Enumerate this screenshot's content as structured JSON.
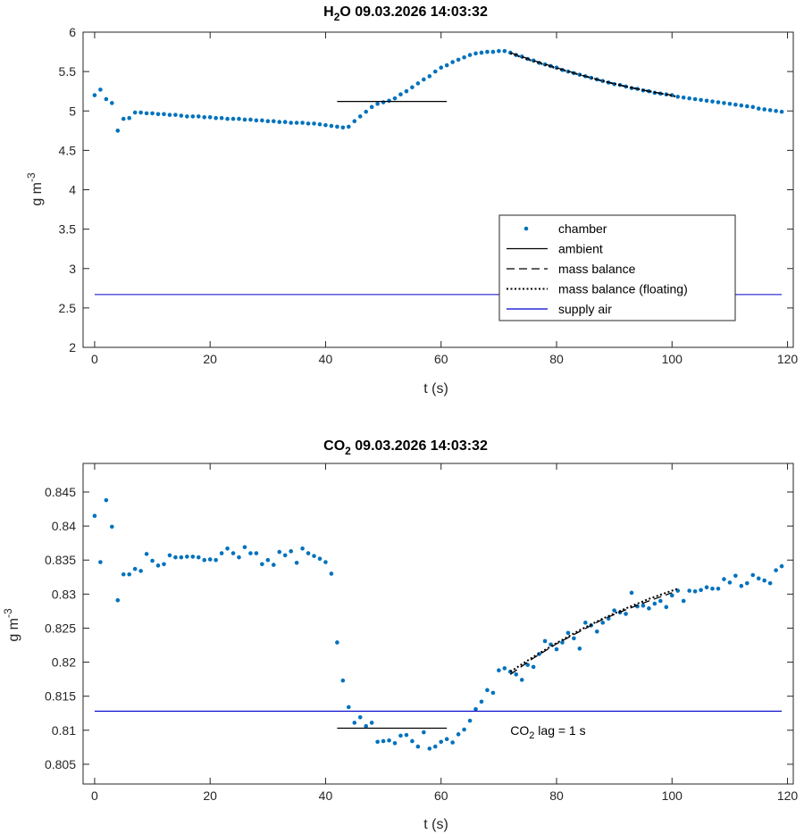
{
  "chart_data": [
    {
      "type": "scatter",
      "title_main": "H",
      "title_sub": "2",
      "title_rest": "O  09.03.2026 14:03:32",
      "xlabel": "t (s)",
      "ylabel_main": "g m",
      "ylabel_sup": "-3",
      "xlim": [
        -2,
        121
      ],
      "ylim": [
        2,
        6
      ],
      "xticks": [
        0,
        20,
        40,
        60,
        80,
        100,
        120
      ],
      "yticks": [
        2,
        2.5,
        3,
        3.5,
        4,
        4.5,
        5,
        5.5,
        6
      ],
      "ytick_labels": [
        "2",
        "2.5",
        "3",
        "3.5",
        "4",
        "4.5",
        "5",
        "5.5",
        "6"
      ],
      "colors": {
        "chamber": "#0072BD",
        "ambient": "#000000",
        "supply": "#0000CC",
        "mass": "#000000"
      },
      "series": [
        {
          "name": "chamber",
          "style": "dots",
          "x": [
            0,
            1,
            2,
            3,
            4,
            5,
            6,
            7,
            8,
            9,
            10,
            11,
            12,
            13,
            14,
            15,
            16,
            17,
            18,
            19,
            20,
            21,
            22,
            23,
            24,
            25,
            26,
            27,
            28,
            29,
            30,
            31,
            32,
            33,
            34,
            35,
            36,
            37,
            38,
            39,
            40,
            41,
            42,
            43,
            44,
            45,
            46,
            47,
            48,
            49,
            50,
            51,
            52,
            53,
            54,
            55,
            56,
            57,
            58,
            59,
            60,
            61,
            62,
            63,
            64,
            65,
            66,
            67,
            68,
            69,
            70,
            71,
            72,
            73,
            74,
            75,
            76,
            77,
            78,
            79,
            80,
            81,
            82,
            83,
            84,
            85,
            86,
            87,
            88,
            89,
            90,
            91,
            92,
            93,
            94,
            95,
            96,
            97,
            98,
            99,
            100,
            101,
            102,
            103,
            104,
            105,
            106,
            107,
            108,
            109,
            110,
            111,
            112,
            113,
            114,
            115,
            116,
            117,
            118,
            119
          ],
          "y": [
            5.2,
            5.27,
            5.15,
            5.1,
            4.75,
            4.9,
            4.91,
            4.98,
            4.98,
            4.97,
            4.97,
            4.96,
            4.96,
            4.95,
            4.95,
            4.94,
            4.93,
            4.93,
            4.93,
            4.92,
            4.92,
            4.91,
            4.91,
            4.9,
            4.9,
            4.9,
            4.89,
            4.89,
            4.88,
            4.88,
            4.87,
            4.87,
            4.86,
            4.86,
            4.85,
            4.85,
            4.85,
            4.84,
            4.84,
            4.83,
            4.82,
            4.81,
            4.8,
            4.79,
            4.8,
            4.87,
            4.93,
            4.99,
            5.05,
            5.09,
            5.11,
            5.13,
            5.16,
            5.21,
            5.25,
            5.3,
            5.35,
            5.4,
            5.44,
            5.5,
            5.55,
            5.58,
            5.62,
            5.65,
            5.68,
            5.71,
            5.73,
            5.74,
            5.75,
            5.75,
            5.76,
            5.76,
            5.74,
            5.71,
            5.69,
            5.66,
            5.64,
            5.61,
            5.59,
            5.57,
            5.55,
            5.52,
            5.5,
            5.48,
            5.46,
            5.44,
            5.42,
            5.4,
            5.38,
            5.36,
            5.34,
            5.33,
            5.31,
            5.29,
            5.28,
            5.26,
            5.25,
            5.23,
            5.22,
            5.21,
            5.2,
            5.18,
            5.17,
            5.16,
            5.15,
            5.14,
            5.13,
            5.12,
            5.11,
            5.1,
            5.09,
            5.08,
            5.07,
            5.06,
            5.05,
            5.03,
            5.02,
            5.01,
            5.0,
            4.99
          ]
        },
        {
          "name": "ambient",
          "style": "solid",
          "x": [
            42,
            61
          ],
          "y": [
            5.12,
            5.12
          ]
        },
        {
          "name": "mass balance",
          "style": "dashed",
          "x": [
            72,
            76,
            80,
            84,
            88,
            92,
            96,
            100
          ],
          "y": [
            5.74,
            5.64,
            5.55,
            5.46,
            5.38,
            5.31,
            5.25,
            5.2
          ]
        },
        {
          "name": "mass balance (floating)",
          "style": "dotted",
          "x": [
            72,
            76,
            80,
            84,
            88,
            92,
            96,
            101
          ],
          "y": [
            5.73,
            5.63,
            5.54,
            5.46,
            5.38,
            5.31,
            5.25,
            5.18
          ]
        },
        {
          "name": "supply air",
          "style": "solid-blue",
          "x": [
            0,
            119
          ],
          "y": [
            2.67,
            2.67
          ]
        }
      ],
      "legend": {
        "entries": [
          "chamber",
          "ambient",
          "mass balance",
          "mass balance (floating)",
          "supply air"
        ],
        "placement": "center-right"
      }
    },
    {
      "type": "scatter",
      "title_main": "CO",
      "title_sub": "2",
      "title_rest": "  09.03.2026 14:03:32",
      "xlabel": "t (s)",
      "ylabel_main": "g m",
      "ylabel_sup": "-3",
      "xlim": [
        -2,
        121
      ],
      "ylim": [
        0.8021,
        0.8492
      ],
      "xticks": [
        0,
        20,
        40,
        60,
        80,
        100,
        120
      ],
      "yticks": [
        0.805,
        0.81,
        0.815,
        0.82,
        0.825,
        0.83,
        0.835,
        0.84,
        0.845
      ],
      "ytick_labels": [
        "0.805",
        "0.81",
        "0.815",
        "0.82",
        "0.825",
        "0.83",
        "0.835",
        "0.84",
        "0.845"
      ],
      "series": [
        {
          "name": "chamber",
          "style": "dots",
          "x": [
            0,
            1,
            2,
            3,
            4,
            5,
            6,
            7,
            8,
            9,
            10,
            11,
            12,
            13,
            14,
            15,
            16,
            17,
            18,
            19,
            20,
            21,
            22,
            23,
            24,
            25,
            26,
            27,
            28,
            29,
            30,
            31,
            32,
            33,
            34,
            35,
            36,
            37,
            38,
            39,
            40,
            41,
            42,
            43,
            44,
            45,
            46,
            47,
            48,
            49,
            50,
            51,
            52,
            53,
            54,
            55,
            56,
            57,
            58,
            59,
            60,
            61,
            62,
            63,
            64,
            65,
            66,
            67,
            68,
            69,
            70,
            71,
            72,
            73,
            74,
            75,
            76,
            77,
            78,
            79,
            80,
            81,
            82,
            83,
            84,
            85,
            86,
            87,
            88,
            89,
            90,
            91,
            92,
            93,
            94,
            95,
            96,
            97,
            98,
            99,
            100,
            101,
            102,
            103,
            104,
            105,
            106,
            107,
            108,
            109,
            110,
            111,
            112,
            113,
            114,
            115,
            116,
            117,
            118,
            119
          ],
          "y": [
            0.8415,
            0.8347,
            0.8438,
            0.8399,
            0.8291,
            0.8329,
            0.8329,
            0.8337,
            0.8334,
            0.8359,
            0.8349,
            0.8342,
            0.8344,
            0.8357,
            0.8354,
            0.8354,
            0.8355,
            0.8355,
            0.8354,
            0.835,
            0.8351,
            0.835,
            0.836,
            0.8367,
            0.836,
            0.8354,
            0.8369,
            0.836,
            0.836,
            0.8344,
            0.835,
            0.8343,
            0.8362,
            0.8357,
            0.8363,
            0.8346,
            0.8367,
            0.836,
            0.8356,
            0.8352,
            0.8347,
            0.833,
            0.8229,
            0.8173,
            0.8134,
            0.8111,
            0.8119,
            0.8106,
            0.8111,
            0.8083,
            0.8084,
            0.8085,
            0.8081,
            0.8092,
            0.8093,
            0.8084,
            0.8076,
            0.8097,
            0.8073,
            0.8076,
            0.8083,
            0.8087,
            0.8082,
            0.8094,
            0.8101,
            0.8114,
            0.8131,
            0.8142,
            0.8159,
            0.8155,
            0.8188,
            0.8191,
            0.8186,
            0.8182,
            0.8174,
            0.8196,
            0.8193,
            0.8212,
            0.8231,
            0.8226,
            0.8219,
            0.8229,
            0.8243,
            0.8235,
            0.822,
            0.8258,
            0.8254,
            0.8245,
            0.8258,
            0.8264,
            0.8276,
            0.8273,
            0.8271,
            0.8302,
            0.8282,
            0.8283,
            0.8279,
            0.8286,
            0.829,
            0.8281,
            0.8298,
            0.8305,
            0.829,
            0.8305,
            0.8304,
            0.8306,
            0.831,
            0.8308,
            0.8308,
            0.8322,
            0.8317,
            0.8327,
            0.8312,
            0.8316,
            0.8328,
            0.8323,
            0.832,
            0.8316,
            0.8335,
            0.8341
          ]
        },
        {
          "name": "ambient",
          "style": "solid",
          "x": [
            42,
            61
          ],
          "y": [
            0.8103,
            0.8103
          ]
        },
        {
          "name": "mass balance",
          "style": "dashed",
          "x": [
            72,
            76,
            80,
            84,
            88,
            92,
            96,
            100
          ],
          "y": [
            0.8182,
            0.8206,
            0.8227,
            0.8245,
            0.8263,
            0.8277,
            0.829,
            0.8302
          ]
        },
        {
          "name": "mass balance (floating)",
          "style": "dotted",
          "x": [
            72,
            76,
            80,
            84,
            88,
            92,
            96,
            101
          ],
          "y": [
            0.8186,
            0.8208,
            0.8228,
            0.8247,
            0.8264,
            0.8279,
            0.8293,
            0.8308
          ]
        },
        {
          "name": "supply air",
          "style": "solid-blue",
          "x": [
            0,
            119
          ],
          "y": [
            0.8128,
            0.8128
          ]
        }
      ],
      "annotation": {
        "main": "CO",
        "sub": "2",
        "rest": " lag = 1 s",
        "x": 72,
        "y": 0.81
      }
    }
  ]
}
